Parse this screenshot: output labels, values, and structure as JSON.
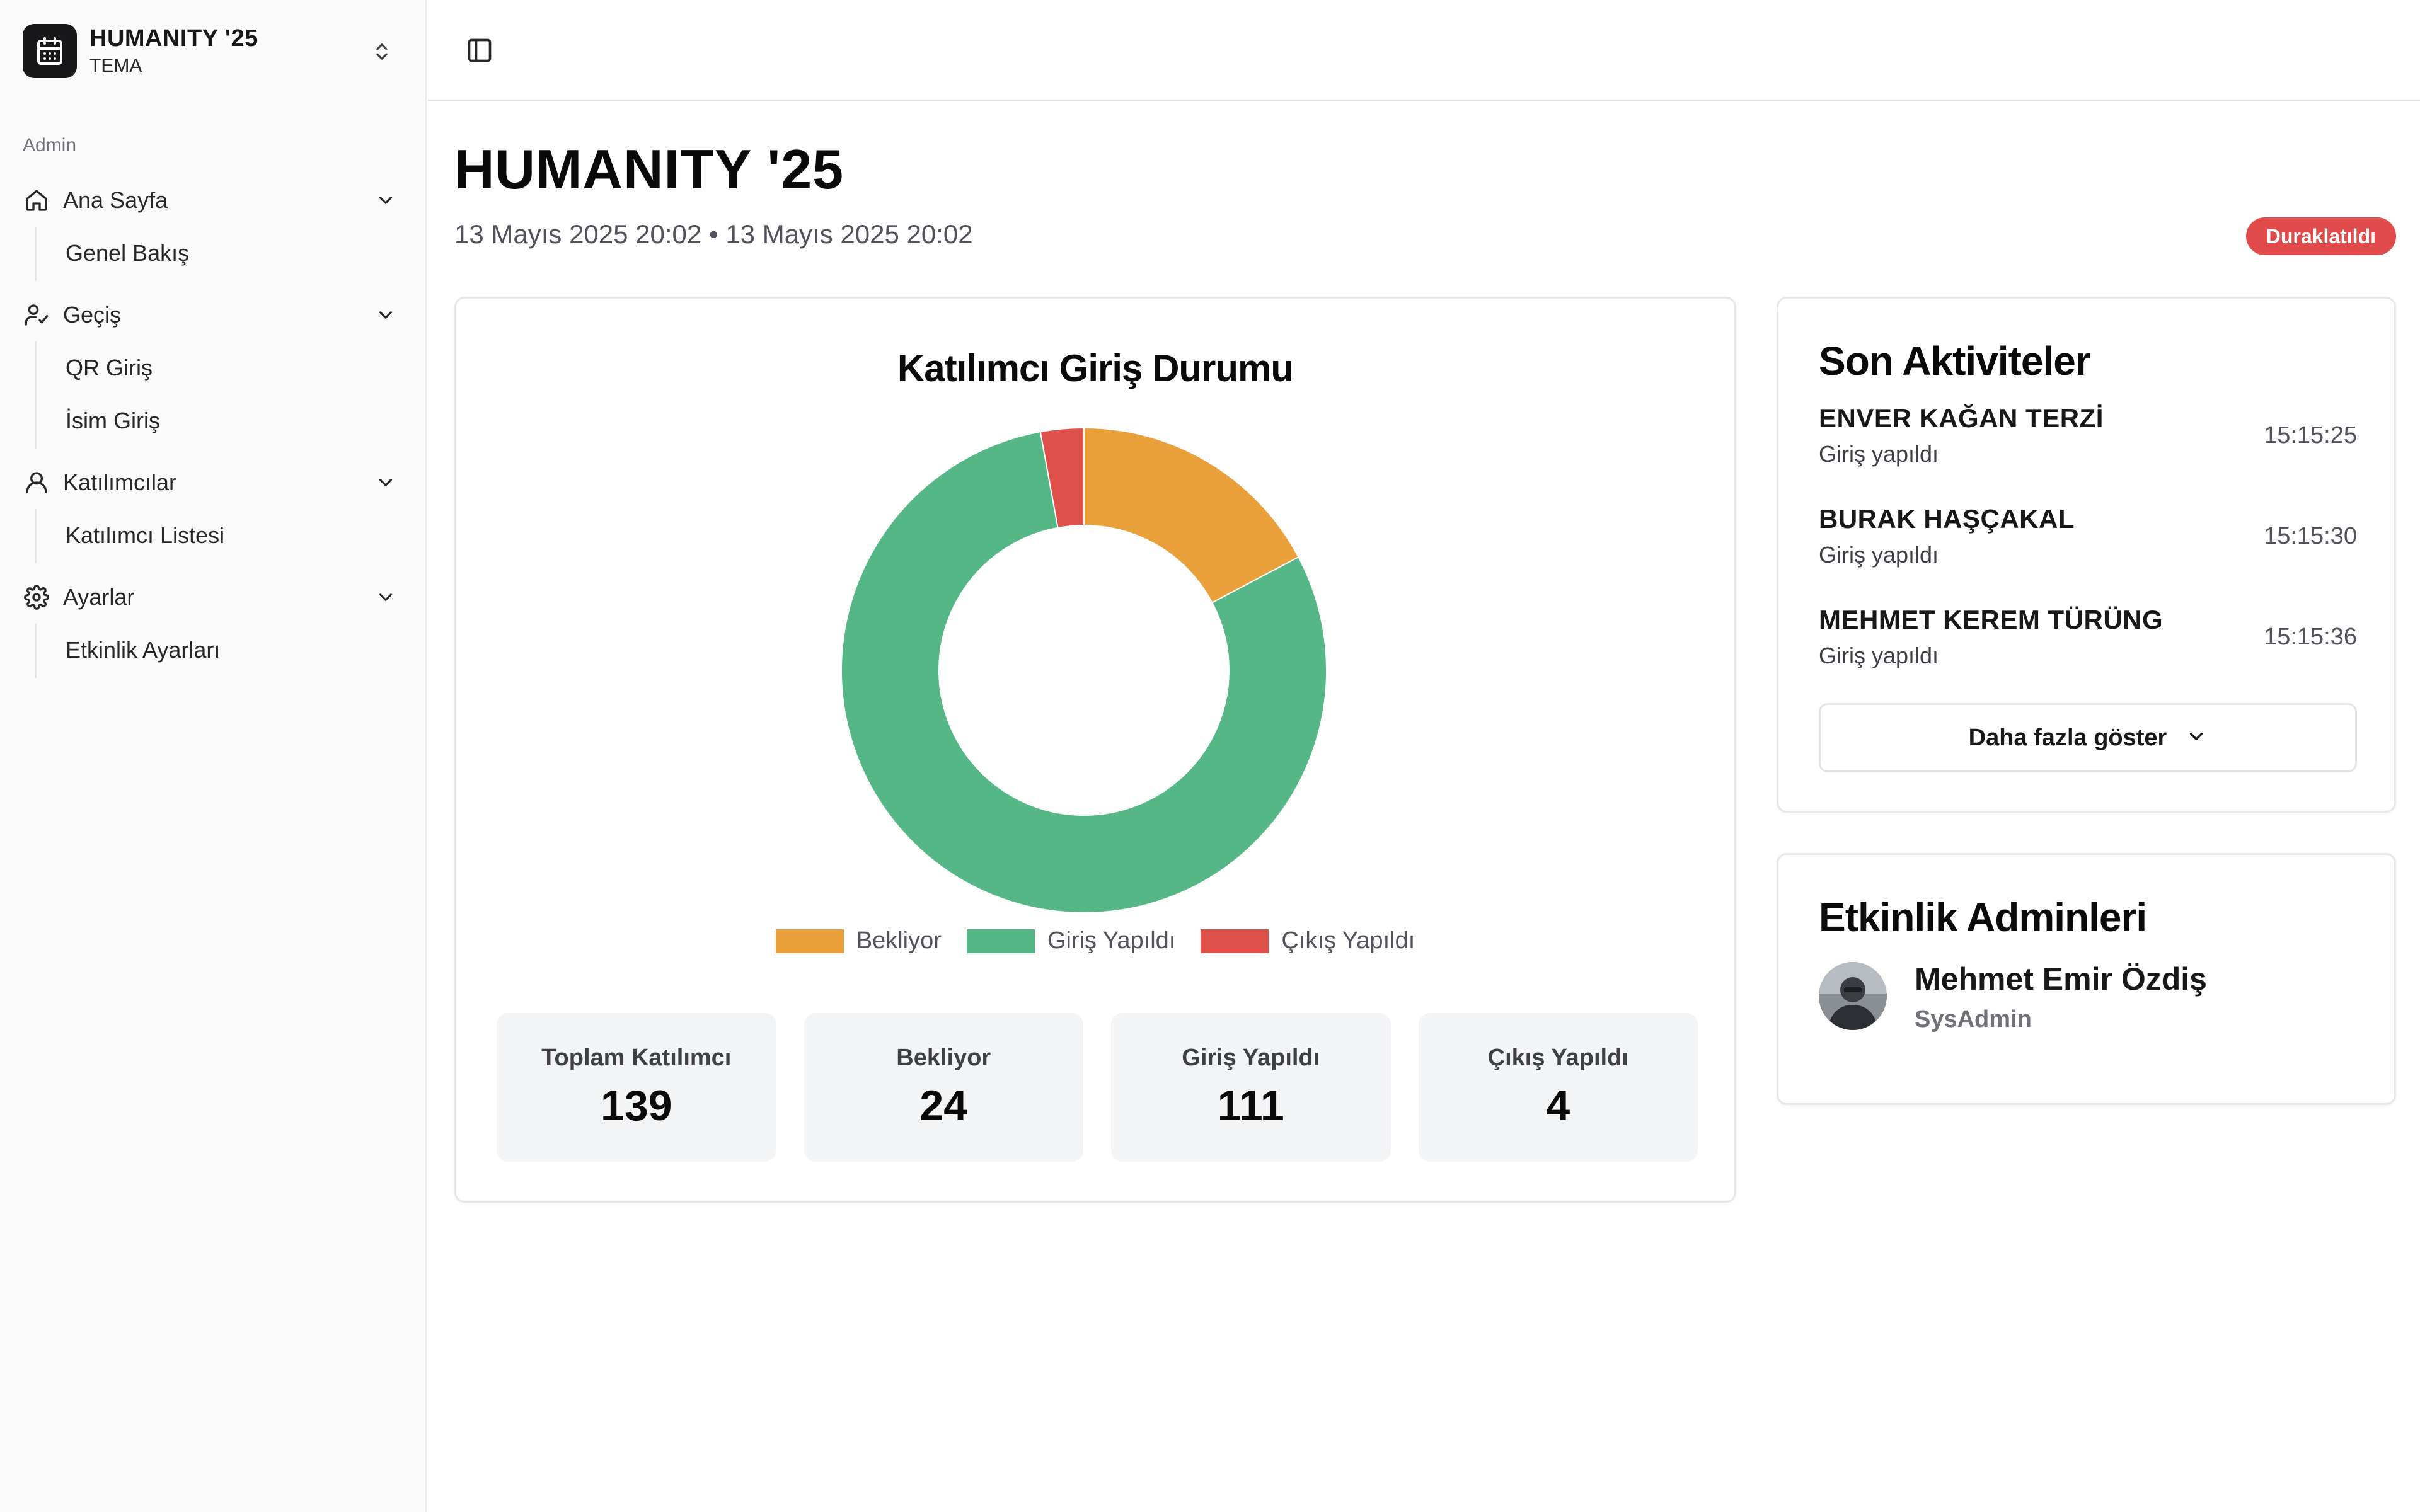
{
  "sidebar": {
    "brand": {
      "title": "HUMANITY '25",
      "subtitle": "TEMA"
    },
    "group_label": "Admin",
    "sections": [
      {
        "label": "Ana Sayfa",
        "icon": "home-icon",
        "items": [
          {
            "label": "Genel Bakış"
          }
        ]
      },
      {
        "label": "Geçiş",
        "icon": "user-check-icon",
        "items": [
          {
            "label": "QR Giriş"
          },
          {
            "label": "İsim Giriş"
          }
        ]
      },
      {
        "label": "Katılımcılar",
        "icon": "users-icon",
        "items": [
          {
            "label": "Katılımcı Listesi"
          }
        ]
      },
      {
        "label": "Ayarlar",
        "icon": "gear-icon",
        "items": [
          {
            "label": "Etkinlik Ayarları"
          }
        ]
      }
    ]
  },
  "header": {
    "title": "HUMANITY '25",
    "dates": "13 Mayıs 2025 20:02 • 13 Mayıs 2025 20:02",
    "status_badge": "Duraklatıldı"
  },
  "chart": {
    "title": "Katılımcı Giriş Durumu",
    "legend": [
      {
        "label": "Bekliyor",
        "color": "#E9A03B"
      },
      {
        "label": "Giriş Yapıldı",
        "color": "#54B785"
      },
      {
        "label": "Çıkış Yapıldı",
        "color": "#E0504A"
      }
    ]
  },
  "chart_data": {
    "type": "pie",
    "title": "Katılımcı Giriş Durumu",
    "categories": [
      "Bekliyor",
      "Giriş Yapıldı",
      "Çıkış Yapıldı"
    ],
    "values": [
      24,
      111,
      4
    ],
    "colors": [
      "#E9A03B",
      "#54B785",
      "#E0504A"
    ],
    "donut": true,
    "legend": "bottom"
  },
  "stats": [
    {
      "label": "Toplam Katılımcı",
      "value": "139"
    },
    {
      "label": "Bekliyor",
      "value": "24"
    },
    {
      "label": "Giriş Yapıldı",
      "value": "111"
    },
    {
      "label": "Çıkış Yapıldı",
      "value": "4"
    }
  ],
  "activities": {
    "title": "Son Aktiviteler",
    "items": [
      {
        "name": "ENVER KAĞAN TERZİ",
        "status": "Giriş yapıldı",
        "time": "15:15:25"
      },
      {
        "name": "BURAK HAŞÇAKAL",
        "status": "Giriş yapıldı",
        "time": "15:15:30"
      },
      {
        "name": "MEHMET KEREM TÜRÜNG",
        "status": "Giriş yapıldı",
        "time": "15:15:36"
      }
    ],
    "more_label": "Daha fazla göster"
  },
  "admins": {
    "title": "Etkinlik Adminleri",
    "items": [
      {
        "name": "Mehmet Emir Özdiş",
        "role": "SysAdmin"
      }
    ]
  }
}
